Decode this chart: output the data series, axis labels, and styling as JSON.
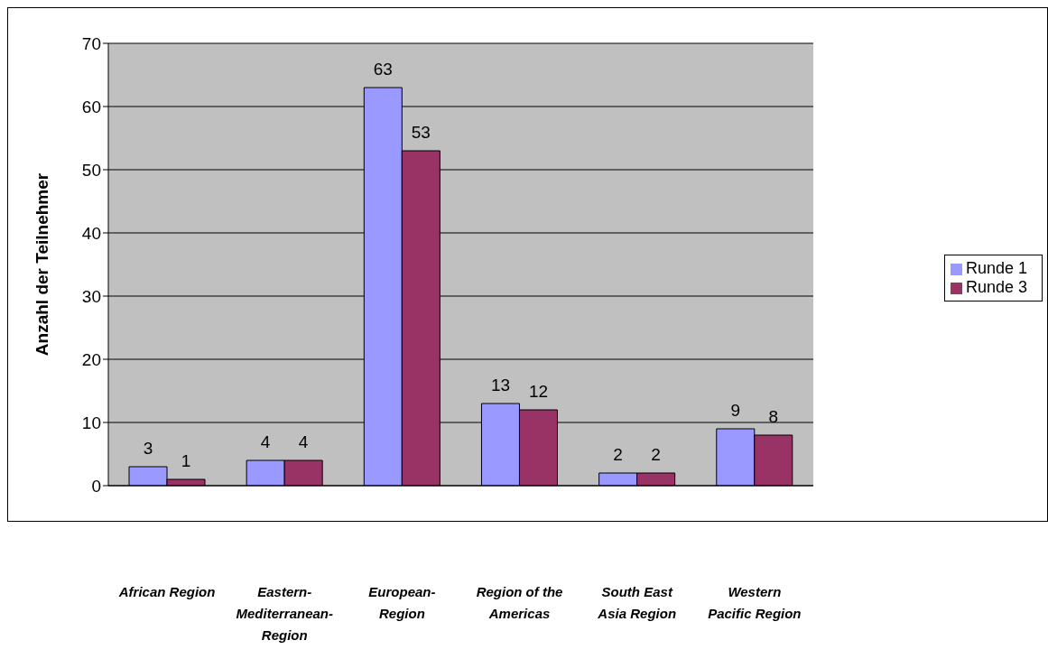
{
  "chart_data": {
    "type": "bar",
    "ylabel": "Anzahl der Teilnehmer",
    "categories": [
      "African Region",
      "Eastern-Mediterranean-Region",
      "European-Region",
      "Region of the Americas",
      "South East Asia Region",
      "Western Pacific Region"
    ],
    "series": [
      {
        "name": "Runde 1",
        "color": "#9999ff",
        "values": [
          3,
          4,
          63,
          13,
          2,
          9
        ]
      },
      {
        "name": "Runde 3",
        "color": "#993366",
        "values": [
          1,
          4,
          53,
          12,
          2,
          8
        ]
      }
    ],
    "ylim": [
      0,
      70
    ],
    "yticks": [
      0,
      10,
      20,
      30,
      40,
      50,
      60,
      70
    ],
    "grid": "y",
    "legend": "right",
    "data_labels": true
  }
}
